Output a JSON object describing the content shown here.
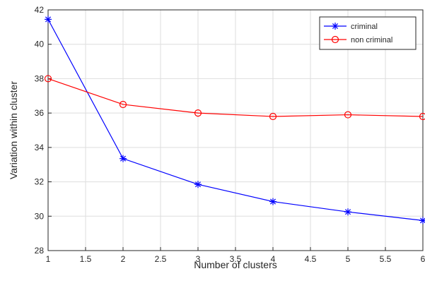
{
  "chart_data": {
    "type": "line",
    "xlabel": "Number of clusters",
    "ylabel": "Variation within cluster",
    "xlim": [
      1,
      6
    ],
    "ylim": [
      28,
      42
    ],
    "x_ticks": [
      "1",
      "1.5",
      "2",
      "2.5",
      "3",
      "3.5",
      "4",
      "4.5",
      "5",
      "5.5",
      "6"
    ],
    "y_ticks": [
      "28",
      "30",
      "32",
      "34",
      "36",
      "38",
      "40",
      "42"
    ],
    "grid": true,
    "legend_position": "top-right",
    "x": [
      1,
      2,
      3,
      4,
      5,
      6
    ],
    "series": [
      {
        "name": "criminal",
        "values": [
          41.45,
          33.35,
          31.85,
          30.85,
          30.25,
          29.75
        ],
        "color": "#0000ff",
        "marker": "asterisk"
      },
      {
        "name": "non criminal",
        "values": [
          38.0,
          36.5,
          36.0,
          35.8,
          35.9,
          35.8
        ],
        "color": "#ff0000",
        "marker": "circle"
      }
    ]
  }
}
